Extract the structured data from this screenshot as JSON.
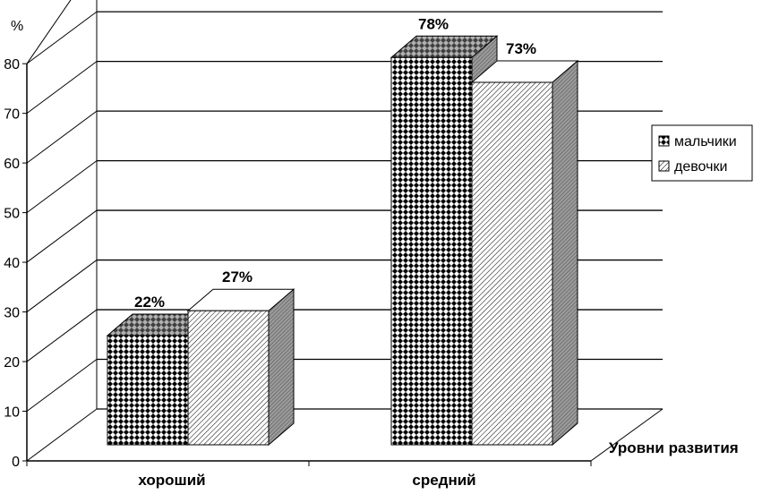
{
  "chart_data": {
    "type": "bar",
    "categories": [
      "хороший",
      "средний"
    ],
    "series": [
      {
        "name": "мальчики",
        "values": [
          22,
          78
        ],
        "labels": [
          "22%",
          "78%"
        ],
        "pattern": "checker"
      },
      {
        "name": "девочки",
        "values": [
          27,
          73
        ],
        "labels": [
          "27%",
          "73%"
        ],
        "pattern": "hatch"
      }
    ],
    "ylabel": "%",
    "xlabel": "Уровни развития",
    "ylim": [
      0,
      80
    ],
    "yticks": [
      "0",
      "10",
      "20",
      "30",
      "40",
      "50",
      "60",
      "70",
      "80"
    ],
    "grid": true,
    "legend_position": "right",
    "colors": {
      "bar_face": "#ffffff",
      "bar_side": "#808080",
      "bar_top_checker": "#a0a0a0",
      "grid": "#000000"
    }
  }
}
